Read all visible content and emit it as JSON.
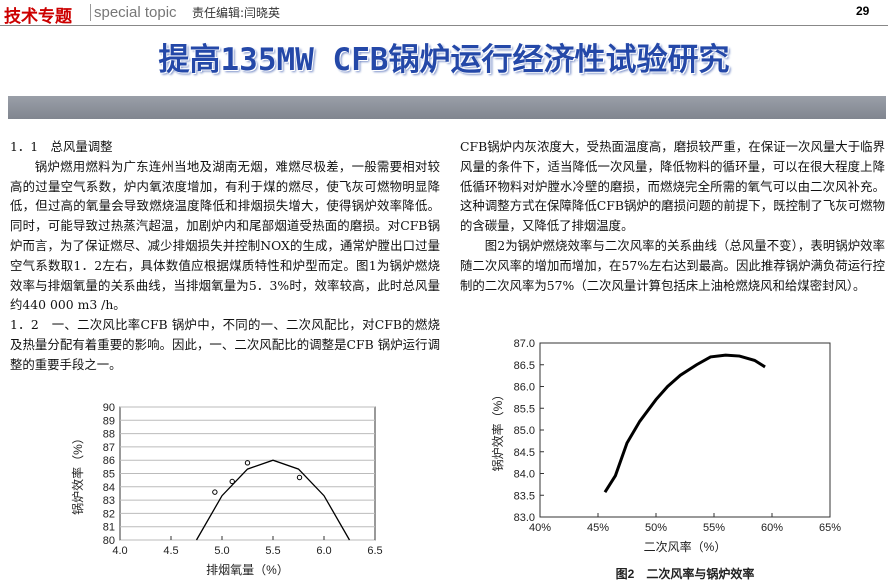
{
  "header": {
    "section": "技术专题",
    "section_en": "special topic",
    "editor": "责任编辑:闫晓英",
    "page": "29"
  },
  "title": "提高135MW CFB锅炉运行经济性试验研究",
  "left_column": {
    "paragraphs": [
      "1．1　总风量调整",
      "锅炉燃用燃料为广东连州当地及湖南无烟，难燃尽极差，一般需要相对较高的过量空气系数，炉内氧浓度增加，有利于煤的燃尽，使飞灰可燃物明显降低，但过高的氧量会导致燃烧温度降低和排烟损失增大，使得锅炉效率降低。同时，可能导致过热蒸汽超温，加剧炉内和尾部烟道受热面的磨损。对CFB锅炉而言，为了保证燃尽、减少排烟损失并控制NOX的生成，通常炉膛出口过量空气系数取1．2左右，具体数值应根据煤质特性和炉型而定。图1为锅炉燃烧效率与排烟氧量的关系曲线，当排烟氧量为5．3%时，效率较高，此时总风量约440 000 m3 /h。",
      "1．2　一、二次风比率CFB 锅炉中，不同的一、二次风配比，对CFB的燃烧及热量分配有着重要的影响。因此，一、二次风配比的调整是CFB 锅炉运行调整的重要手段之一。"
    ]
  },
  "right_column": {
    "paragraphs": [
      "CFB锅炉内灰浓度大，受热面温度高，磨损较严重，在保证一次风量大于临界风量的条件下，适当降低一次风量，降低物料的循环量，可以在很大程度上降低循环物料对炉膛水冷壁的磨损，而燃烧完全所需的氧气可以由二次风补充。这种调整方式在保障降低CFB锅炉的磨损问题的前提下，既控制了飞灰可燃物的含碳量，又降低了排烟温度。",
      "图2为锅炉燃烧效率与二次风率的关系曲线（总风量不变），表明锅炉效率随二次风率的增加而增加，在57%左右达到最高。因此推荐锅炉满负荷运行控制的二次风率为57%（二次风量计算包括床上油枪燃烧风和给煤密封风）。"
    ]
  },
  "chart_data": [
    {
      "type": "line",
      "x_label": "排烟氧量（%）",
      "y_label": "锅炉效率（%）",
      "grid": true,
      "xlim": [
        4,
        6.5
      ],
      "ylim": [
        80,
        90
      ],
      "xticks": [
        {
          "value": 4,
          "label": "4.0"
        },
        4.5,
        {
          "value": 5,
          "label": "5.0"
        },
        5.5,
        {
          "value": 6,
          "label": "6.0"
        },
        6.5
      ],
      "yticks": [
        80,
        81,
        82,
        83,
        84,
        85,
        86,
        87,
        88,
        89,
        90
      ],
      "series": [
        {
          "color": "#000000",
          "x": [
            4.75,
            5,
            5.25,
            5.5,
            5.75,
            6,
            6.25
          ],
          "values": [
            80,
            83.33,
            85.33,
            86,
            85.33,
            83.33,
            80
          ]
        },
        {
          "type": "scatter",
          "color": "#000000",
          "x": [
            4.93,
            5.1,
            5.25,
            5.76
          ],
          "values": [
            83.6,
            84.4,
            85.8,
            84.7
          ]
        }
      ]
    },
    {
      "type": "line",
      "caption": "图2　二次风率与锅炉效率",
      "x_label": "二次风率（%）",
      "y_label": "锅炉效率（%）",
      "grid": false,
      "xlim": [
        40,
        65
      ],
      "ylim": [
        83,
        87
      ],
      "xticks": [
        {
          "value": 40,
          "label": "40%"
        },
        {
          "value": 45,
          "label": "45%"
        },
        {
          "value": 50,
          "label": "50%"
        },
        {
          "value": 55,
          "label": "55%"
        },
        {
          "value": 60,
          "label": "60%"
        },
        {
          "value": 65,
          "label": "65%"
        }
      ],
      "yticks": [
        {
          "value": 83,
          "label": "83.0"
        },
        83.5,
        {
          "value": 84,
          "label": "84.0"
        },
        84.5,
        {
          "value": 85,
          "label": "85.0"
        },
        85.5,
        {
          "value": 86,
          "label": "86.0"
        },
        86.5,
        {
          "value": 87,
          "label": "87.0"
        }
      ],
      "series": [
        {
          "color": "#000000",
          "x": [
            45.6,
            46.5,
            47.5,
            48.6,
            50,
            51,
            52.1,
            53.5,
            54.7,
            56,
            57.2,
            58.5,
            59.4
          ],
          "values": [
            83.57,
            83.95,
            84.7,
            85.2,
            85.7,
            86.0,
            86.26,
            86.5,
            86.68,
            86.72,
            86.7,
            86.6,
            86.45
          ]
        }
      ]
    }
  ]
}
